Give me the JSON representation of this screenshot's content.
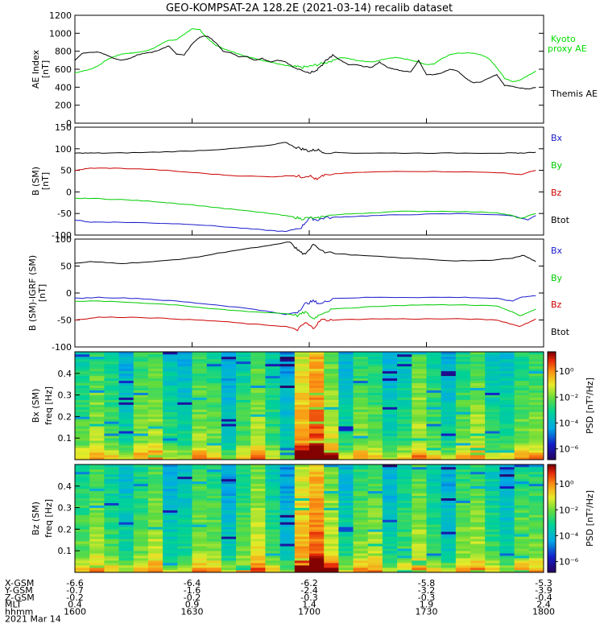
{
  "title": "GEO-KOMPSAT-2A 128.2E (2021-03-14) recalib dataset",
  "chart_data": [
    {
      "type": "line",
      "ylabel": "AE Index",
      "yunit": "[nT]",
      "ylim": [
        0,
        1200
      ],
      "yticks": [
        "0",
        "200",
        "400",
        "600",
        "800",
        "1000",
        "1200"
      ],
      "x_range_hhmm": [
        "1600",
        "1800"
      ],
      "series": [
        {
          "name": "Kyoto proxy AE",
          "color": "#00dd00",
          "x": [
            0,
            10,
            20,
            30,
            40,
            50,
            60,
            70,
            75,
            80,
            90,
            100,
            110,
            120,
            130,
            140,
            150,
            160,
            170,
            180,
            190,
            200,
            210,
            220,
            230,
            240,
            250,
            260,
            270,
            280,
            290,
            300,
            310,
            320,
            330,
            340,
            350,
            360,
            370,
            380,
            390,
            400,
            410,
            420,
            430,
            440,
            450,
            460,
            470,
            480,
            490,
            500,
            510,
            520,
            530,
            540,
            550,
            560,
            570,
            580,
            590
          ],
          "y": [
            560,
            580,
            600,
            640,
            700,
            740,
            770,
            780,
            780,
            790,
            800,
            830,
            880,
            920,
            930,
            990,
            1050,
            1040,
            940,
            870,
            830,
            800,
            770,
            740,
            720,
            700,
            680,
            660,
            640,
            630,
            620,
            630,
            650,
            670,
            700,
            730,
            720,
            700,
            690,
            680,
            700,
            720,
            730,
            720,
            700,
            680,
            650,
            660,
            720,
            760,
            780,
            780,
            780,
            760,
            720,
            620,
            500,
            460,
            480,
            530,
            580
          ]
        },
        {
          "name": "Themis AE",
          "color": "#000000",
          "x": [
            0,
            10,
            20,
            30,
            40,
            50,
            60,
            70,
            80,
            90,
            100,
            110,
            120,
            130,
            140,
            150,
            160,
            170,
            180,
            190,
            200,
            210,
            220,
            230,
            240,
            250,
            260,
            270,
            280,
            290,
            300,
            310,
            320,
            330,
            340,
            350,
            360,
            370,
            380,
            390,
            400,
            410,
            420,
            430,
            440,
            450,
            460,
            470,
            480,
            490,
            500,
            510,
            520,
            530,
            540,
            550,
            560,
            570,
            580,
            590
          ],
          "y": [
            700,
            780,
            790,
            790,
            760,
            720,
            700,
            720,
            760,
            780,
            790,
            820,
            860,
            770,
            760,
            880,
            960,
            970,
            900,
            800,
            780,
            740,
            740,
            700,
            720,
            680,
            700,
            680,
            620,
            600,
            560,
            600,
            680,
            760,
            700,
            650,
            650,
            630,
            620,
            680,
            620,
            600,
            580,
            570,
            700,
            540,
            540,
            560,
            600,
            580,
            500,
            450,
            460,
            500,
            540,
            420,
            410,
            390,
            380,
            400
          ]
        }
      ]
    },
    {
      "type": "line",
      "ylabel": "B (SM)",
      "yunit": "[nT]",
      "ylim": [
        -100,
        150
      ],
      "yticks": [
        "-100",
        "-50",
        "0",
        "50",
        "100",
        "150"
      ],
      "series": [
        {
          "name": "Bx",
          "color": "#1a1acc",
          "x": [
            0,
            20,
            50,
            100,
            150,
            200,
            240,
            270,
            290,
            300,
            310,
            320,
            340,
            380,
            440,
            500,
            560,
            580,
            590
          ],
          "y": [
            -65,
            -70,
            -70,
            -72,
            -75,
            -82,
            -88,
            -92,
            -82,
            -60,
            -65,
            -60,
            -58,
            -55,
            -52,
            -50,
            -55,
            -65,
            -55
          ]
        },
        {
          "name": "By",
          "color": "#00cc00",
          "x": [
            0,
            20,
            60,
            100,
            150,
            200,
            250,
            280,
            290,
            300,
            310,
            320,
            360,
            420,
            480,
            540,
            560,
            570,
            590
          ],
          "y": [
            -15,
            -15,
            -18,
            -22,
            -30,
            -40,
            -50,
            -58,
            -62,
            -60,
            -62,
            -55,
            -50,
            -45,
            -45,
            -48,
            -55,
            -62,
            -50
          ]
        },
        {
          "name": "Bz",
          "color": "#cc0000",
          "x": [
            0,
            20,
            50,
            100,
            150,
            200,
            250,
            280,
            290,
            300,
            310,
            320,
            360,
            420,
            480,
            540,
            560,
            570,
            590
          ],
          "y": [
            50,
            55,
            55,
            52,
            45,
            38,
            35,
            38,
            35,
            38,
            28,
            40,
            45,
            48,
            47,
            45,
            42,
            40,
            50
          ]
        },
        {
          "name": "Btot",
          "color": "#000000",
          "x": [
            0,
            20,
            50,
            100,
            150,
            200,
            250,
            270,
            280,
            290,
            300,
            310,
            320,
            360,
            420,
            480,
            540,
            560,
            570,
            590
          ],
          "y": [
            90,
            90,
            90,
            92,
            95,
            100,
            108,
            115,
            105,
            100,
            95,
            98,
            92,
            90,
            90,
            90,
            90,
            90,
            90,
            92
          ]
        }
      ]
    },
    {
      "type": "line",
      "ylabel": "B (SM)-IGRF (SM)",
      "yunit": "[nT]",
      "ylim": [
        -100,
        100
      ],
      "yticks": [
        "-100",
        "-50",
        "0",
        "50",
        "100"
      ],
      "series": [
        {
          "name": "Bx",
          "color": "#1a1acc",
          "x": [
            0,
            30,
            80,
            130,
            180,
            230,
            270,
            285,
            295,
            305,
            315,
            330,
            380,
            440,
            500,
            540,
            560,
            570,
            590
          ],
          "y": [
            -10,
            -8,
            -10,
            -15,
            -22,
            -30,
            -40,
            -35,
            -20,
            -15,
            -20,
            -10,
            -8,
            -8,
            -8,
            -10,
            -15,
            -8,
            -5
          ]
        },
        {
          "name": "By",
          "color": "#00cc00",
          "x": [
            0,
            30,
            80,
            130,
            180,
            230,
            270,
            285,
            295,
            305,
            315,
            330,
            380,
            440,
            500,
            540,
            560,
            570,
            590
          ],
          "y": [
            -15,
            -15,
            -18,
            -22,
            -30,
            -35,
            -38,
            -42,
            -35,
            -48,
            -38,
            -30,
            -25,
            -22,
            -22,
            -24,
            -35,
            -42,
            -30
          ]
        },
        {
          "name": "Bz",
          "color": "#cc0000",
          "x": [
            0,
            30,
            80,
            130,
            180,
            230,
            270,
            285,
            295,
            305,
            315,
            330,
            380,
            440,
            500,
            540,
            560,
            570,
            590
          ],
          "y": [
            -50,
            -45,
            -45,
            -48,
            -52,
            -58,
            -62,
            -68,
            -55,
            -65,
            -50,
            -50,
            -48,
            -48,
            -48,
            -50,
            -58,
            -62,
            -48
          ]
        },
        {
          "name": "Btot",
          "color": "#000000",
          "x": [
            0,
            20,
            60,
            100,
            150,
            200,
            250,
            275,
            285,
            295,
            305,
            320,
            360,
            420,
            480,
            530,
            560,
            575,
            590
          ],
          "y": [
            55,
            58,
            55,
            58,
            65,
            78,
            88,
            95,
            80,
            70,
            92,
            75,
            70,
            65,
            60,
            60,
            65,
            70,
            58
          ]
        }
      ]
    },
    {
      "type": "heatmap",
      "panel_label": "Bx (SM)",
      "ylabel": "freq [Hz]",
      "ylim": [
        0,
        0.5
      ],
      "yticks": [
        "0.1",
        "0.2",
        "0.3",
        "0.4"
      ],
      "colorbar_label": "PSD [nT²/Hz]",
      "colorbar_ticks": [
        "10⁰",
        "10⁻²",
        "10⁻⁴",
        "10⁻⁶"
      ]
    },
    {
      "type": "heatmap",
      "panel_label": "Bz (SM)",
      "ylabel": "freq [Hz]",
      "ylim": [
        0,
        0.5
      ],
      "yticks": [
        "0.1",
        "0.2",
        "0.3",
        "0.4"
      ],
      "colorbar_label": "PSD [nT²/Hz]",
      "colorbar_ticks": [
        "10⁰",
        "10⁻²",
        "10⁻⁴",
        "10⁻⁶"
      ]
    }
  ],
  "ephemeris": {
    "labels": [
      "X-GSM",
      "Y-GSM",
      "Z-GSM",
      "MLT",
      "hhmm",
      "2021 Mar 14"
    ],
    "columns": [
      [
        "-6.6",
        "-0.7",
        "-0.2",
        "0.4",
        "1600"
      ],
      [
        "-6.4",
        "-1.6",
        "-0.2",
        "0.9",
        "1630"
      ],
      [
        "-6.2",
        "-2.4",
        "-0.3",
        "1.4",
        "1700"
      ],
      [
        "-5.8",
        "-3.2",
        "-0.3",
        "1.9",
        "1730"
      ],
      [
        "-5.3",
        "-3.9",
        "-0.4",
        "2.4",
        "1800"
      ]
    ]
  }
}
